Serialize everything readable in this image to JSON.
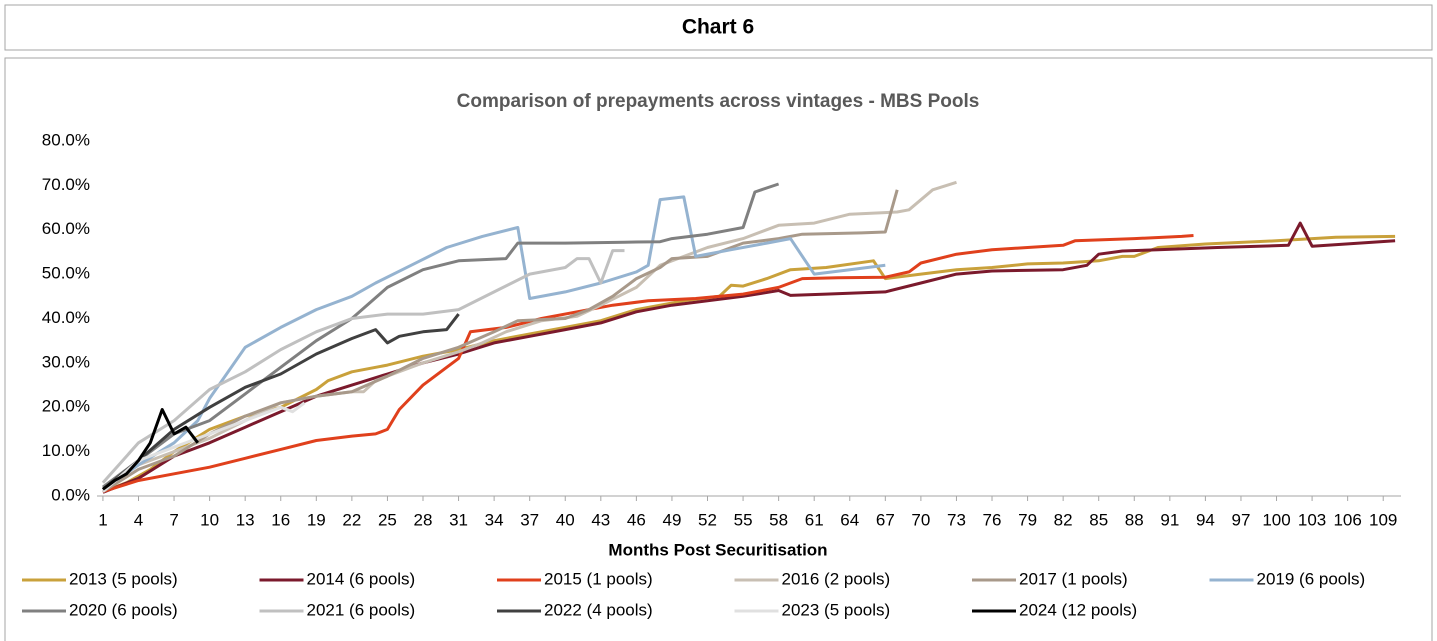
{
  "header": {
    "title": "Chart 6"
  },
  "chart_data": {
    "type": "line",
    "title": "Comparison of prepayments across vintages - MBS Pools",
    "x_label": "Months Post Securitisation",
    "xlim": [
      0.5,
      110.5
    ],
    "xticks": [
      1,
      4,
      7,
      10,
      13,
      16,
      19,
      22,
      25,
      28,
      31,
      34,
      37,
      40,
      43,
      46,
      49,
      52,
      55,
      58,
      61,
      64,
      67,
      70,
      73,
      76,
      79,
      82,
      85,
      88,
      91,
      94,
      97,
      100,
      103,
      106,
      109
    ],
    "ylim": [
      0,
      80
    ],
    "yticks": [
      {
        "value": 0,
        "label": "0.0%"
      },
      {
        "value": 10,
        "label": "10.0%"
      },
      {
        "value": 20,
        "label": "20.0%"
      },
      {
        "value": 30,
        "label": "30.0%"
      },
      {
        "value": 40,
        "label": "40.0%"
      },
      {
        "value": 50,
        "label": "50.0%"
      },
      {
        "value": 60,
        "label": "60.0%"
      },
      {
        "value": 70,
        "label": "70.0%"
      },
      {
        "value": 80,
        "label": "80.0%"
      }
    ],
    "grid": false,
    "legend": "bottom",
    "series": [
      {
        "name": "2013 (5 pools)",
        "color": "#c9a13b",
        "x": [
          1,
          3,
          5,
          7,
          10,
          13,
          16,
          19,
          20,
          22,
          25,
          28,
          31,
          34,
          37,
          40,
          43,
          46,
          50,
          53,
          54,
          55,
          57,
          59,
          62,
          66,
          67,
          70,
          73,
          76,
          79,
          82,
          85,
          87,
          88,
          90,
          94,
          100,
          105,
          110
        ],
        "values": [
          1,
          3,
          6,
          10,
          15,
          18,
          20,
          24,
          26,
          28,
          29.5,
          31.5,
          33,
          35,
          36.5,
          38,
          39.5,
          42,
          44,
          45,
          47.5,
          47.3,
          49,
          51,
          51.5,
          53,
          49,
          50,
          51,
          51.5,
          52.3,
          52.5,
          53,
          54,
          54,
          56,
          56.8,
          57.5,
          58.3,
          58.5
        ]
      },
      {
        "name": "2014 (6 pools)",
        "color": "#7b1a2c",
        "x": [
          1,
          4,
          7,
          10,
          13,
          16,
          19,
          22,
          25,
          28,
          31,
          34,
          37,
          40,
          43,
          46,
          49,
          52,
          55,
          58,
          59,
          62,
          67,
          70,
          73,
          76,
          82,
          84,
          85,
          87,
          90,
          95,
          101,
          102,
          103,
          110
        ],
        "values": [
          0.8,
          4,
          9,
          12,
          15.5,
          19,
          22.5,
          25,
          27.5,
          30,
          32,
          34.5,
          36,
          37.5,
          39,
          41.5,
          43,
          44,
          45,
          46.3,
          45.2,
          45.5,
          46,
          48,
          50,
          50.7,
          51,
          52,
          54.5,
          55.2,
          55.5,
          56,
          56.5,
          61.5,
          56.3,
          57.5
        ]
      },
      {
        "name": "2015 (1 pools)",
        "color": "#e0401c",
        "x": [
          1,
          4,
          7,
          10,
          13,
          16,
          19,
          22,
          24,
          25,
          26,
          28,
          30,
          31,
          32,
          35,
          38,
          41,
          44,
          47,
          51,
          55,
          58,
          60,
          63,
          67,
          69,
          70,
          73,
          76,
          79,
          82,
          83,
          88,
          92,
          93
        ],
        "values": [
          1,
          3.5,
          5,
          6.5,
          8.5,
          10.5,
          12.5,
          13.5,
          14,
          15,
          19.5,
          25,
          29,
          31,
          37,
          38,
          40,
          41.5,
          43,
          44,
          44.5,
          45.5,
          47,
          49,
          49.2,
          49.3,
          50.5,
          52.5,
          54.5,
          55.5,
          56,
          56.5,
          57.5,
          58,
          58.5,
          58.7
        ]
      },
      {
        "name": "2016 (2 pools)",
        "color": "#c8bfb3",
        "x": [
          1,
          4,
          7,
          10,
          13,
          16,
          19,
          22,
          23,
          24,
          28,
          31,
          33,
          35,
          38,
          41,
          43,
          46,
          48,
          50,
          52,
          55,
          58,
          61,
          64,
          68,
          69,
          71,
          73
        ],
        "values": [
          1.5,
          7,
          10,
          13,
          17,
          21,
          22.5,
          23.5,
          23.5,
          26,
          30,
          32.5,
          34.5,
          37,
          39.5,
          40.5,
          43,
          47,
          52,
          54,
          56,
          58,
          61,
          61.5,
          63.5,
          64,
          64.5,
          69,
          70.7
        ]
      },
      {
        "name": "2017 (1 pools)",
        "color": "#a8998a",
        "x": [
          1,
          4,
          7,
          10,
          13,
          16,
          19,
          22,
          25,
          28,
          31,
          34,
          36,
          40,
          42,
          44,
          46,
          48,
          49,
          52,
          55,
          58,
          60,
          65,
          67,
          68
        ],
        "values": [
          1,
          6,
          9,
          14,
          18,
          21,
          22.5,
          23.5,
          27,
          31,
          33.5,
          37,
          39.5,
          40,
          42,
          45,
          49,
          51.5,
          53.5,
          54,
          57,
          58,
          59,
          59.3,
          59.5,
          69
        ]
      },
      {
        "name": "2019 (6 pools)",
        "color": "#95b3d0",
        "x": [
          1,
          4,
          7,
          9,
          10,
          13,
          16,
          19,
          22,
          24,
          27,
          30,
          33,
          36,
          37,
          40,
          43,
          46,
          47,
          48,
          50,
          51,
          54,
          57,
          59,
          61,
          64,
          67
        ],
        "values": [
          1.5,
          7,
          12,
          17,
          22,
          33.5,
          38,
          42,
          45,
          48,
          52,
          56,
          58.5,
          60.5,
          44.5,
          46,
          48,
          50.5,
          52,
          66.8,
          67.4,
          54,
          55.5,
          57,
          58,
          50,
          51,
          52
        ]
      },
      {
        "name": "2020 (6 pools)",
        "color": "#808080",
        "x": [
          1,
          4,
          7,
          10,
          13,
          16,
          19,
          22,
          25,
          28,
          31,
          35,
          36,
          40,
          45,
          48,
          49,
          52,
          55,
          56,
          58
        ],
        "values": [
          2,
          8,
          14,
          17,
          23,
          29,
          35,
          40,
          47,
          51,
          53,
          53.5,
          57,
          57,
          57.2,
          57.3,
          58,
          59,
          60.5,
          68.5,
          70.3
        ]
      },
      {
        "name": "2021 (6 pools)",
        "color": "#c0c0c0",
        "x": [
          1,
          4,
          7,
          10,
          13,
          16,
          19,
          22,
          25,
          28,
          31,
          34,
          37,
          40,
          41,
          42,
          43,
          44,
          45
        ],
        "values": [
          3,
          12,
          17,
          24,
          28,
          33,
          37,
          40,
          41,
          41,
          42,
          46,
          50,
          51.5,
          53.5,
          53.5,
          48,
          55.3,
          55.3
        ]
      },
      {
        "name": "2022 (4 pools)",
        "color": "#404040",
        "x": [
          1,
          4,
          7,
          10,
          13,
          16,
          19,
          22,
          24,
          25,
          26,
          28,
          30,
          31
        ],
        "values": [
          1.5,
          8,
          15,
          20,
          24.5,
          27.5,
          32,
          35.5,
          37.5,
          34.5,
          36,
          37,
          37.5,
          41
        ]
      },
      {
        "name": "2023 (5 pools)",
        "color": "#e0e0e0",
        "x": [
          1,
          4,
          7,
          10,
          13,
          16,
          17,
          18
        ],
        "values": [
          1,
          8,
          11,
          14,
          17,
          20,
          19,
          21
        ]
      },
      {
        "name": "2024 (12 pools)",
        "color": "#000000",
        "x": [
          1,
          2,
          3,
          4,
          5,
          6,
          7,
          8,
          9
        ],
        "values": [
          1.5,
          3.5,
          5,
          8,
          12,
          19.5,
          14,
          15.5,
          12
        ]
      }
    ]
  }
}
